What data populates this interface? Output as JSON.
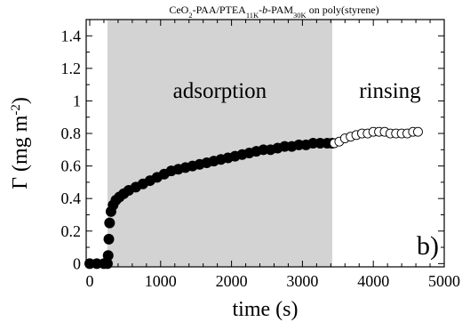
{
  "chart_data": {
    "type": "scatter",
    "title_parts": [
      {
        "text": "CeO",
        "sub": false
      },
      {
        "text": "2",
        "sub": true
      },
      {
        "text": "-PAA/PTEA",
        "sub": false
      },
      {
        "text": "11K",
        "sub": true
      },
      {
        "text": "-",
        "sub": false
      },
      {
        "text": "b",
        "sub": false,
        "italic": true
      },
      {
        "text": "-PAM",
        "sub": false
      },
      {
        "text": "30K",
        "sub": true
      },
      {
        "text": " on poly(styrene)",
        "sub": false
      }
    ],
    "xlabel": "time (s)",
    "ylabel_parts": [
      {
        "text": "Γ (mg m",
        "sup": false
      },
      {
        "text": "-2",
        "sup": true
      },
      {
        "text": ")",
        "sup": false
      }
    ],
    "xlim": [
      -50,
      5000
    ],
    "ylim": [
      -0.02,
      1.5
    ],
    "xticks": [
      0,
      1000,
      2000,
      3000,
      4000,
      5000
    ],
    "yticks": [
      0,
      0.2,
      0.4,
      0.6,
      0.8,
      1,
      1.2,
      1.4
    ],
    "ytick_labels": [
      "0",
      "0.2",
      "0.4",
      "0.6",
      "0.8",
      "1",
      "1.2",
      "1.4"
    ],
    "shaded_region": {
      "x_start": 250,
      "x_end": 3420,
      "label": "adsorption"
    },
    "rinsing_label": "rinsing",
    "panel_label": "b)",
    "series": [
      {
        "marker": "filled-circle",
        "color": "#000000",
        "points": [
          [
            0,
            0
          ],
          [
            100,
            0
          ],
          [
            200,
            0
          ],
          [
            250,
            0
          ],
          [
            260,
            0.05
          ],
          [
            270,
            0.15
          ],
          [
            280,
            0.25
          ],
          [
            300,
            0.32
          ],
          [
            330,
            0.36
          ],
          [
            370,
            0.39
          ],
          [
            420,
            0.41
          ],
          [
            480,
            0.43
          ],
          [
            550,
            0.45
          ],
          [
            650,
            0.47
          ],
          [
            750,
            0.49
          ],
          [
            850,
            0.51
          ],
          [
            950,
            0.53
          ],
          [
            1050,
            0.55
          ],
          [
            1150,
            0.57
          ],
          [
            1250,
            0.58
          ],
          [
            1350,
            0.59
          ],
          [
            1450,
            0.6
          ],
          [
            1550,
            0.61
          ],
          [
            1650,
            0.62
          ],
          [
            1750,
            0.63
          ],
          [
            1850,
            0.64
          ],
          [
            1950,
            0.65
          ],
          [
            2050,
            0.66
          ],
          [
            2150,
            0.67
          ],
          [
            2250,
            0.68
          ],
          [
            2350,
            0.69
          ],
          [
            2450,
            0.7
          ],
          [
            2550,
            0.7
          ],
          [
            2650,
            0.71
          ],
          [
            2750,
            0.72
          ],
          [
            2850,
            0.72
          ],
          [
            2950,
            0.73
          ],
          [
            3050,
            0.73
          ],
          [
            3150,
            0.74
          ],
          [
            3250,
            0.74
          ],
          [
            3350,
            0.74
          ],
          [
            3420,
            0.74
          ]
        ]
      },
      {
        "marker": "open-circle",
        "color": "#000000",
        "points": [
          [
            3450,
            0.74
          ],
          [
            3520,
            0.75
          ],
          [
            3600,
            0.77
          ],
          [
            3680,
            0.78
          ],
          [
            3760,
            0.79
          ],
          [
            3840,
            0.8
          ],
          [
            3920,
            0.8
          ],
          [
            4000,
            0.81
          ],
          [
            4080,
            0.81
          ],
          [
            4160,
            0.81
          ],
          [
            4240,
            0.8
          ],
          [
            4320,
            0.8
          ],
          [
            4400,
            0.8
          ],
          [
            4480,
            0.8
          ],
          [
            4560,
            0.81
          ],
          [
            4630,
            0.81
          ]
        ]
      }
    ]
  }
}
